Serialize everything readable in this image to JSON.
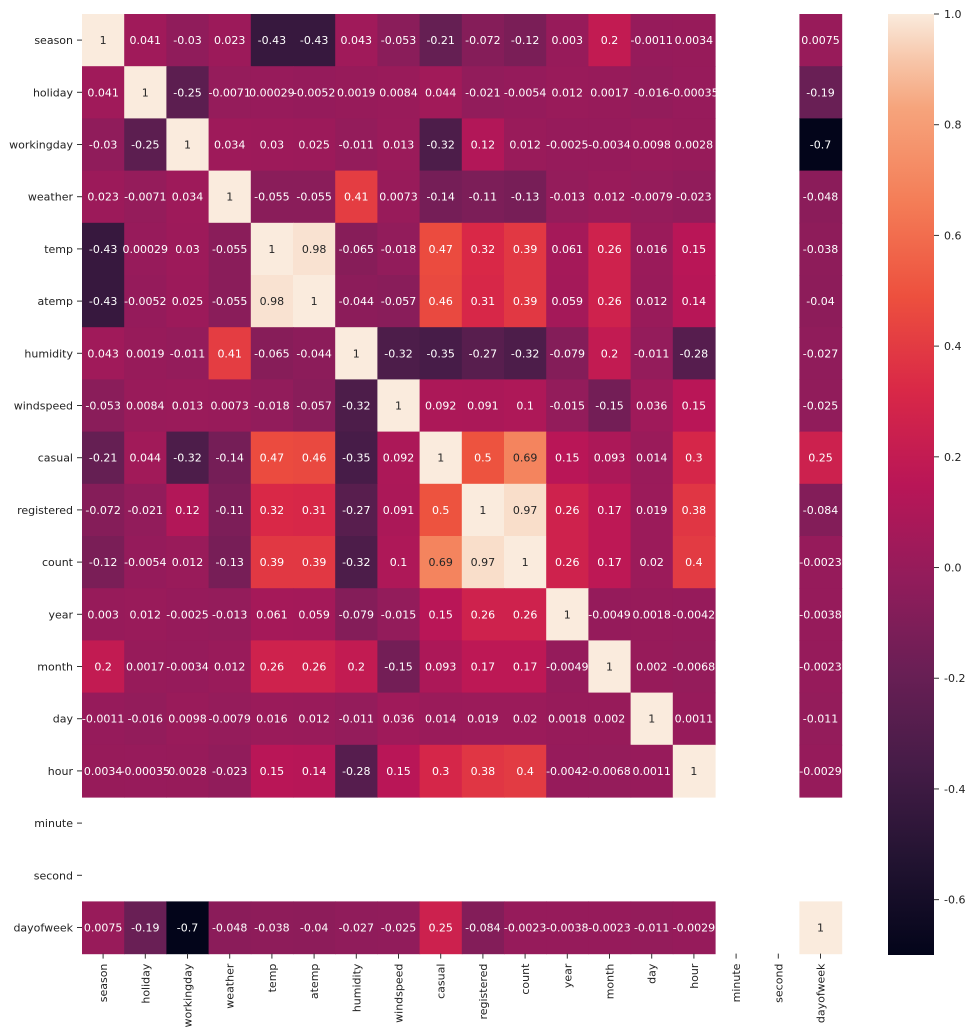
{
  "chart_data": {
    "type": "heatmap",
    "labels": [
      "season",
      "holiday",
      "workingday",
      "weather",
      "temp",
      "atemp",
      "humidity",
      "windspeed",
      "casual",
      "registered",
      "count",
      "year",
      "month",
      "day",
      "hour",
      "minute",
      "second",
      "dayofweek"
    ],
    "annotations": [
      [
        "1",
        "0.041",
        "-0.03",
        "0.023",
        "-0.43",
        "-0.43",
        "0.043",
        "-0.053",
        "-0.21",
        "-0.072",
        "-0.12",
        "0.003",
        "0.2",
        "-0.0011",
        "0.0034",
        "",
        "",
        "0.0075"
      ],
      [
        "0.041",
        "1",
        "-0.25",
        "-0.0071",
        "0.00029",
        "-0.0052",
        "0.0019",
        "0.0084",
        "0.044",
        "-0.021",
        "-0.0054",
        "0.012",
        "0.0017",
        "-0.016",
        "-0.00035",
        "",
        "",
        "-0.19"
      ],
      [
        "-0.03",
        "-0.25",
        "1",
        "0.034",
        "0.03",
        "0.025",
        "-0.011",
        "0.013",
        "-0.32",
        "0.12",
        "0.012",
        "-0.0025",
        "-0.0034",
        "0.0098",
        "0.0028",
        "",
        "",
        "-0.7"
      ],
      [
        "0.023",
        "-0.0071",
        "0.034",
        "1",
        "-0.055",
        "-0.055",
        "0.41",
        "0.0073",
        "-0.14",
        "-0.11",
        "-0.13",
        "-0.013",
        "0.012",
        "-0.0079",
        "-0.023",
        "",
        "",
        "-0.048"
      ],
      [
        "-0.43",
        "0.00029",
        "0.03",
        "-0.055",
        "1",
        "0.98",
        "-0.065",
        "-0.018",
        "0.47",
        "0.32",
        "0.39",
        "0.061",
        "0.26",
        "0.016",
        "0.15",
        "",
        "",
        "-0.038"
      ],
      [
        "-0.43",
        "-0.0052",
        "0.025",
        "-0.055",
        "0.98",
        "1",
        "-0.044",
        "-0.057",
        "0.46",
        "0.31",
        "0.39",
        "0.059",
        "0.26",
        "0.012",
        "0.14",
        "",
        "",
        "-0.04"
      ],
      [
        "0.043",
        "0.0019",
        "-0.011",
        "0.41",
        "-0.065",
        "-0.044",
        "1",
        "-0.32",
        "-0.35",
        "-0.27",
        "-0.32",
        "-0.079",
        "0.2",
        "-0.011",
        "-0.28",
        "",
        "",
        "-0.027"
      ],
      [
        "-0.053",
        "0.0084",
        "0.013",
        "0.0073",
        "-0.018",
        "-0.057",
        "-0.32",
        "1",
        "0.092",
        "0.091",
        "0.1",
        "-0.015",
        "-0.15",
        "0.036",
        "0.15",
        "",
        "",
        "-0.025"
      ],
      [
        "-0.21",
        "0.044",
        "-0.32",
        "-0.14",
        "0.47",
        "0.46",
        "-0.35",
        "0.092",
        "1",
        "0.5",
        "0.69",
        "0.15",
        "0.093",
        "0.014",
        "0.3",
        "",
        "",
        "0.25"
      ],
      [
        "-0.072",
        "-0.021",
        "0.12",
        "-0.11",
        "0.32",
        "0.31",
        "-0.27",
        "0.091",
        "0.5",
        "1",
        "0.97",
        "0.26",
        "0.17",
        "0.019",
        "0.38",
        "",
        "",
        "-0.084"
      ],
      [
        "-0.12",
        "-0.0054",
        "0.012",
        "-0.13",
        "0.39",
        "0.39",
        "-0.32",
        "0.1",
        "0.69",
        "0.97",
        "1",
        "0.26",
        "0.17",
        "0.02",
        "0.4",
        "",
        "",
        "-0.0023"
      ],
      [
        "0.003",
        "0.012",
        "-0.0025",
        "-0.013",
        "0.061",
        "0.059",
        "-0.079",
        "-0.015",
        "0.15",
        "0.26",
        "0.26",
        "1",
        "-0.0049",
        "0.0018",
        "-0.0042",
        "",
        "",
        "-0.0038"
      ],
      [
        "0.2",
        "0.0017",
        "-0.0034",
        "0.012",
        "0.26",
        "0.26",
        "0.2",
        "-0.15",
        "0.093",
        "0.17",
        "0.17",
        "-0.0049",
        "1",
        "0.002",
        "-0.0068",
        "",
        "",
        "-0.0023"
      ],
      [
        "-0.0011",
        "-0.016",
        "0.0098",
        "-0.0079",
        "0.016",
        "0.012",
        "-0.011",
        "0.036",
        "0.014",
        "0.019",
        "0.02",
        "0.0018",
        "0.002",
        "1",
        "0.0011",
        "",
        "",
        "-0.011"
      ],
      [
        "0.0034",
        "-0.00035",
        "0.0028",
        "-0.023",
        "0.15",
        "0.14",
        "-0.28",
        "0.15",
        "0.3",
        "0.38",
        "0.4",
        "-0.0042",
        "-0.0068",
        "0.0011",
        "1",
        "",
        "",
        "-0.0029"
      ],
      [
        "",
        "",
        "",
        "",
        "",
        "",
        "",
        "",
        "",
        "",
        "",
        "",
        "",
        "",
        "",
        "",
        "",
        ""
      ],
      [
        "",
        "",
        "",
        "",
        "",
        "",
        "",
        "",
        "",
        "",
        "",
        "",
        "",
        "",
        "",
        "",
        "",
        ""
      ],
      [
        "0.0075",
        "-0.19",
        "-0.7",
        "-0.048",
        "-0.038",
        "-0.04",
        "-0.027",
        "-0.025",
        "0.25",
        "-0.084",
        "-0.0023",
        "-0.0038",
        "-0.0023",
        "-0.011",
        "-0.0029",
        "",
        "",
        "1"
      ]
    ],
    "colorbar": {
      "min": -0.7,
      "max": 1.0,
      "ticks": [
        -0.6,
        -0.4,
        -0.2,
        0.0,
        0.2,
        0.4,
        0.6,
        0.8,
        1.0
      ],
      "tick_labels": [
        "-0.6",
        "-0.4",
        "-0.2",
        "0.0",
        "0.2",
        "0.4",
        "0.6",
        "0.8",
        "1.0"
      ],
      "colormap": "rocket"
    }
  }
}
